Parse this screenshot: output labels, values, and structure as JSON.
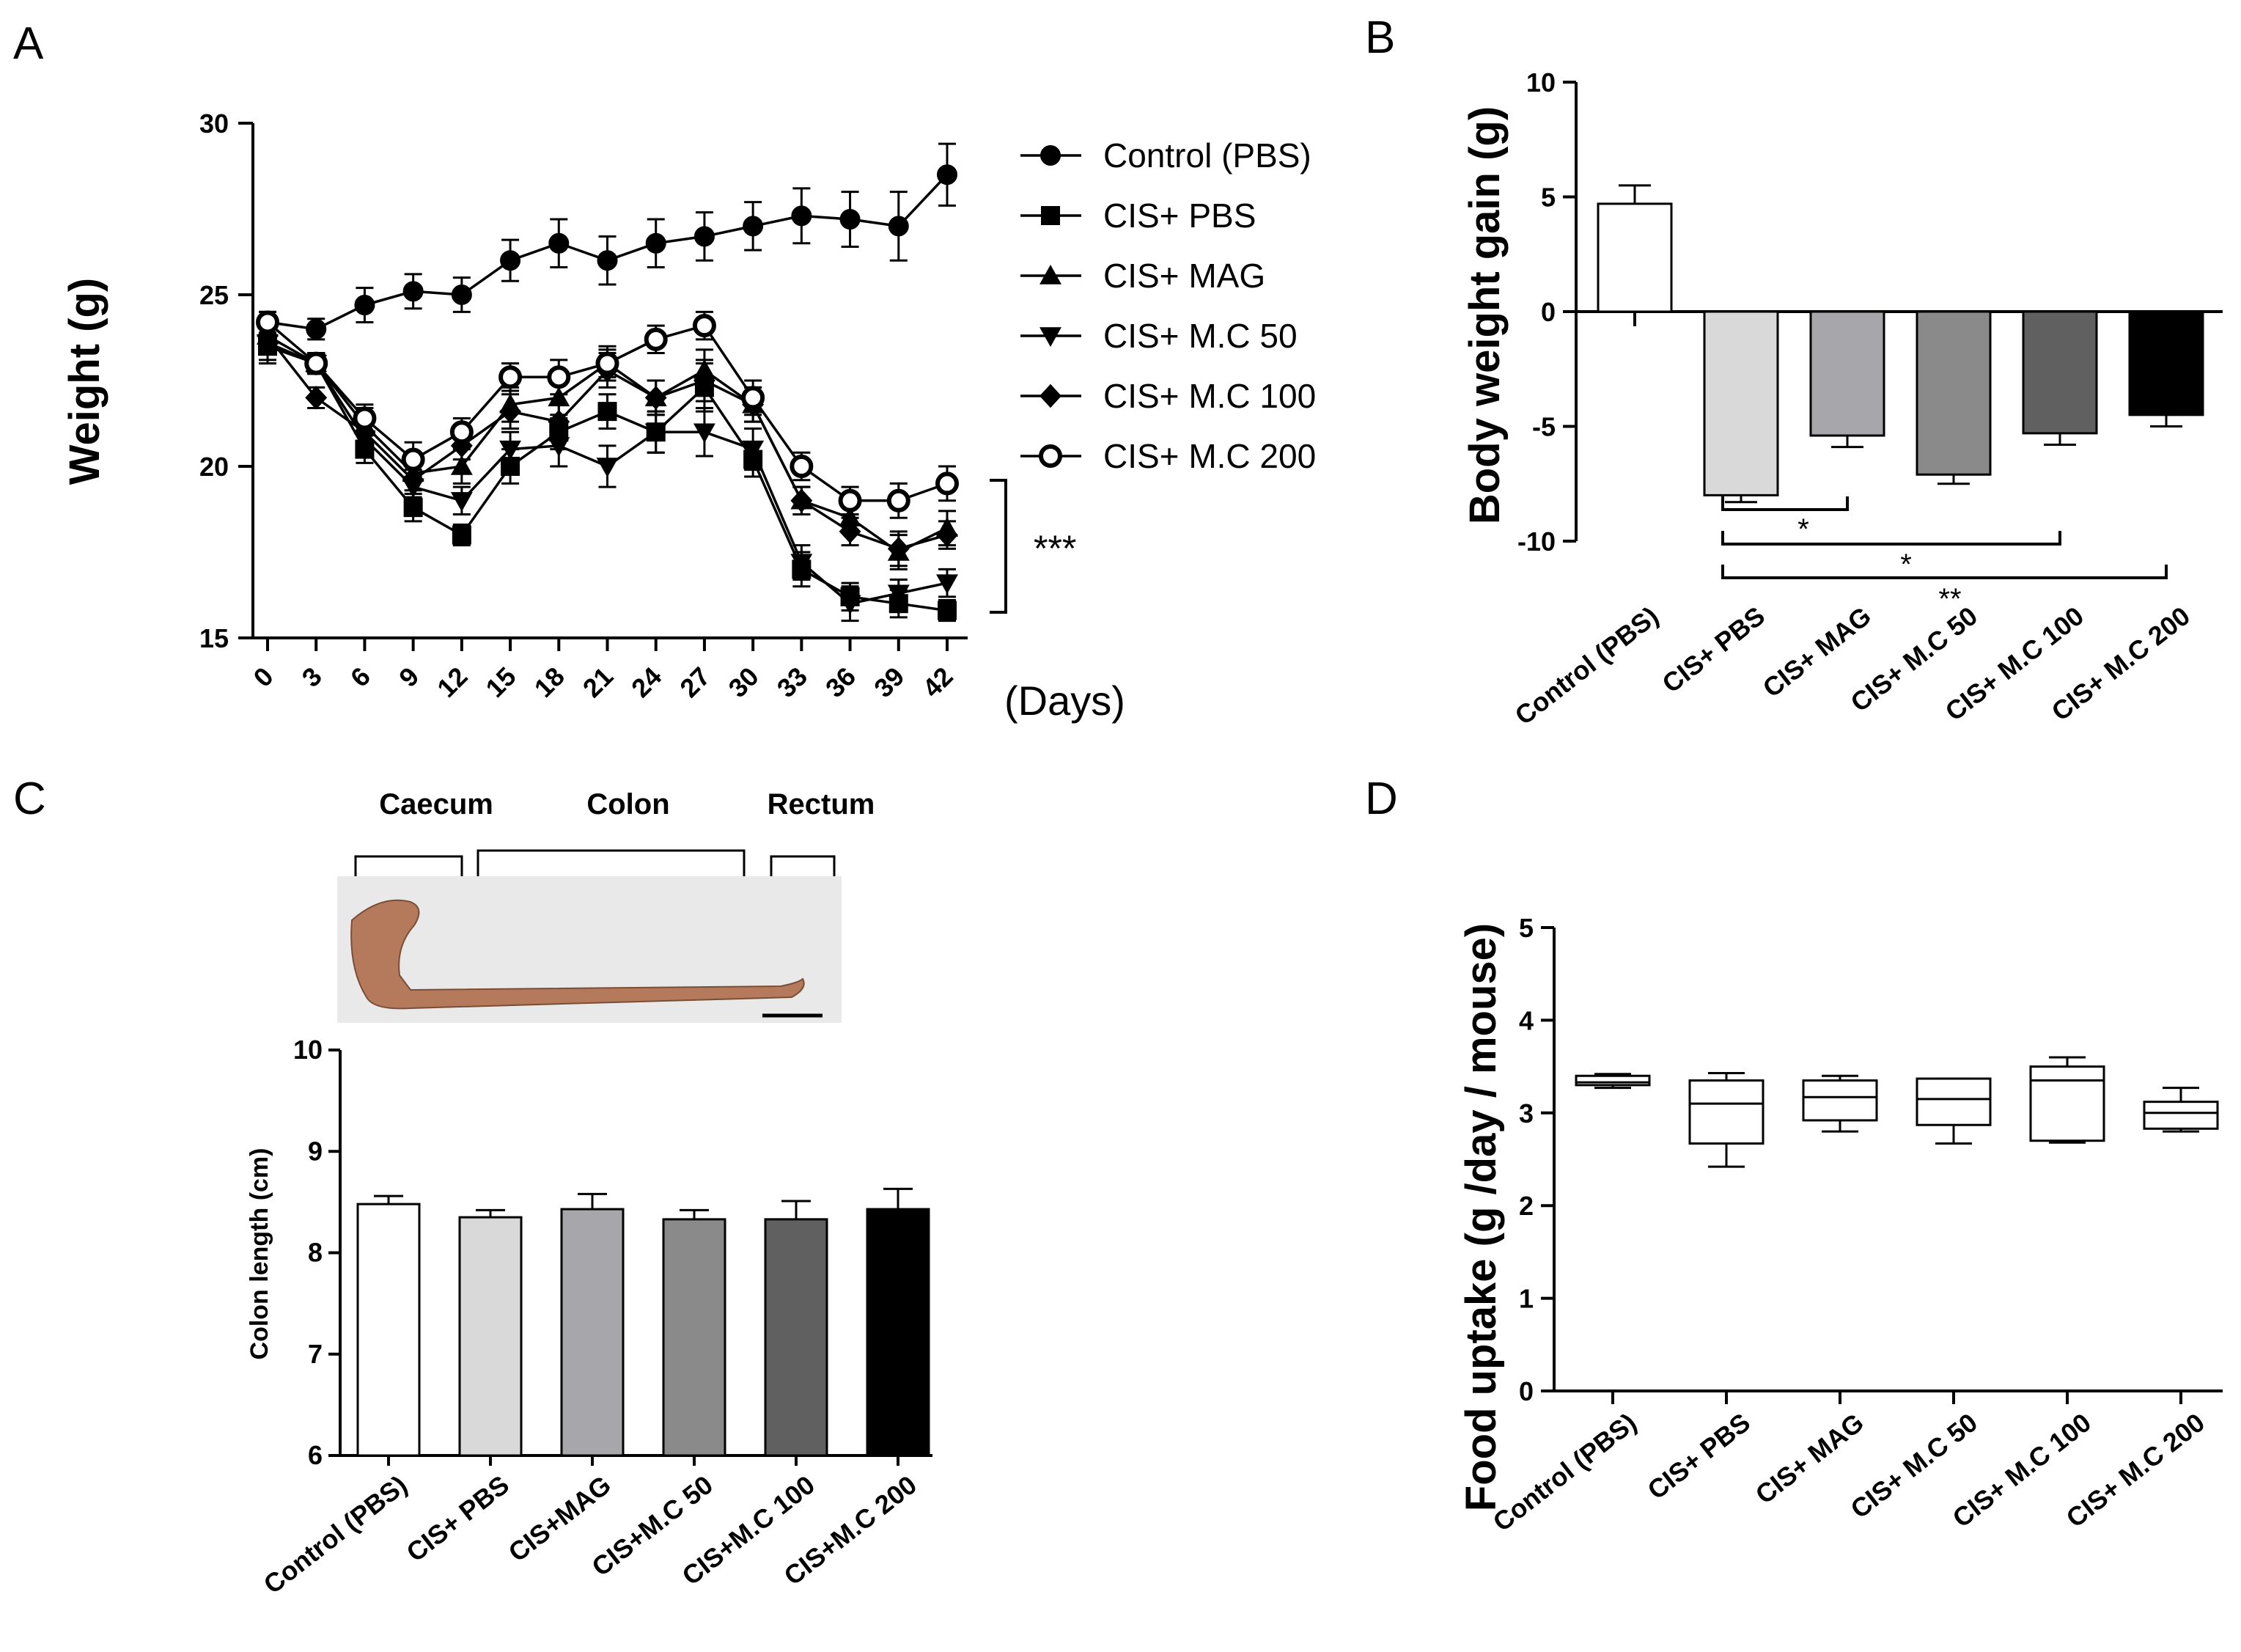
{
  "panels": {
    "A": "A",
    "B": "B",
    "C": "C",
    "D": "D"
  },
  "colors": {
    "control": "#ffffff",
    "pbs": "#d9d9d9",
    "mag": "#a6a6ab",
    "mc50": "#8a8a8a",
    "mc100": "#606060",
    "mc200": "#000000",
    "tissue": "#b57a5c",
    "photo_bg": "#e9e9ea"
  },
  "chart_data": [
    {
      "id": "A",
      "type": "line",
      "title": "",
      "xlabel": "(Days)",
      "ylabel": "Weight (g)",
      "ylim": [
        15,
        30
      ],
      "yticks": [
        "15",
        "20",
        "25",
        "30"
      ],
      "x": [
        0,
        3,
        6,
        9,
        12,
        15,
        18,
        21,
        24,
        27,
        30,
        33,
        36,
        39,
        42
      ],
      "xticklabels": [
        "0",
        "3",
        "6",
        "9",
        "12",
        "15",
        "18",
        "21",
        "24",
        "27",
        "30",
        "33",
        "36",
        "39",
        "42"
      ],
      "series": [
        {
          "name": "Control (PBS)",
          "marker": "circle",
          "values": [
            24.2,
            24.0,
            24.7,
            25.1,
            25.0,
            26.0,
            26.5,
            26.0,
            26.5,
            26.7,
            27.0,
            27.3,
            27.2,
            27.0,
            28.5
          ],
          "err": [
            0.3,
            0.3,
            0.5,
            0.5,
            0.5,
            0.6,
            0.7,
            0.7,
            0.7,
            0.7,
            0.7,
            0.8,
            0.8,
            1.0,
            0.9
          ]
        },
        {
          "name": "CIS+ PBS",
          "marker": "square",
          "values": [
            23.5,
            23.0,
            20.5,
            18.8,
            18.0,
            20.0,
            21.0,
            21.6,
            21.0,
            22.3,
            20.2,
            17.0,
            16.2,
            16.0,
            15.8
          ],
          "err": [
            0.5,
            0.3,
            0.4,
            0.4,
            0.3,
            0.5,
            0.5,
            0.5,
            0.6,
            0.7,
            0.5,
            0.5,
            0.4,
            0.4,
            0.3
          ]
        },
        {
          "name": "CIS+ MAG",
          "marker": "triangle-up",
          "values": [
            23.8,
            23.0,
            21.2,
            19.8,
            20.0,
            21.8,
            22.0,
            23.0,
            22.0,
            22.8,
            21.8,
            19.0,
            18.5,
            17.5,
            18.2
          ],
          "err": [
            0.5,
            0.3,
            0.5,
            0.5,
            0.5,
            0.5,
            0.6,
            0.5,
            0.5,
            0.6,
            0.5,
            0.4,
            0.4,
            0.5,
            0.5
          ]
        },
        {
          "name": "CIS+ M.C 50",
          "marker": "triangle-down",
          "values": [
            23.6,
            23.0,
            20.8,
            19.4,
            19.0,
            20.5,
            20.6,
            20.0,
            21.0,
            21.0,
            20.5,
            17.2,
            16.0,
            16.3,
            16.6
          ],
          "err": [
            0.5,
            0.3,
            0.5,
            0.5,
            0.4,
            0.5,
            0.6,
            0.6,
            0.6,
            0.7,
            0.6,
            0.5,
            0.5,
            0.4,
            0.4
          ]
        },
        {
          "name": "CIS+ M.C 100",
          "marker": "diamond",
          "values": [
            23.8,
            22.0,
            21.0,
            19.6,
            20.6,
            21.6,
            21.3,
            22.8,
            22.0,
            22.5,
            21.8,
            19.0,
            18.1,
            17.6,
            18.0
          ],
          "err": [
            0.4,
            0.3,
            0.5,
            0.5,
            0.4,
            0.5,
            0.5,
            0.5,
            0.5,
            0.6,
            0.5,
            0.4,
            0.4,
            0.5,
            0.4
          ]
        },
        {
          "name": "CIS+ M.C 200",
          "marker": "circle-open",
          "values": [
            24.2,
            23.0,
            21.4,
            20.2,
            21.0,
            22.6,
            22.6,
            23.0,
            23.7,
            24.1,
            22.0,
            20.0,
            19.0,
            19.0,
            19.5
          ],
          "err": [
            0.3,
            0.3,
            0.4,
            0.5,
            0.4,
            0.4,
            0.5,
            0.4,
            0.4,
            0.4,
            0.5,
            0.4,
            0.4,
            0.5,
            0.5
          ]
        }
      ],
      "annotation": "***"
    },
    {
      "id": "B",
      "type": "bar",
      "ylabel": "Body weight gain (g)",
      "ylim": [
        -10,
        10
      ],
      "yticks": [
        "-10",
        "-5",
        "0",
        "5",
        "10"
      ],
      "categories": [
        "Control (PBS)",
        "CIS+ PBS",
        "CIS+ MAG",
        "CIS+ M.C 50",
        "CIS+ M.C 100",
        "CIS+ M.C 200"
      ],
      "values": [
        4.7,
        -8.0,
        -5.4,
        -7.1,
        -5.3,
        -4.5
      ],
      "err": [
        0.8,
        0.3,
        0.5,
        0.4,
        0.5,
        0.5
      ],
      "brackets": [
        {
          "from": 1,
          "to": 2,
          "label": ""
        },
        {
          "from": 1,
          "to": 4,
          "label": "*"
        },
        {
          "from": 1,
          "to": 5,
          "label": "*"
        },
        {
          "from": 1,
          "to": 5,
          "label": "**"
        }
      ],
      "star_label_mag": "*"
    },
    {
      "id": "C",
      "type": "bar",
      "ylabel": "Colon length (cm)",
      "ylim": [
        6,
        10
      ],
      "yticks": [
        "6",
        "7",
        "8",
        "9",
        "10"
      ],
      "categories": [
        "Control (PBS)",
        "CIS+ PBS",
        "CIS+MAG",
        "CIS+M.C 50",
        "CIS+M.C 100",
        "CIS+M.C 200"
      ],
      "values": [
        8.48,
        8.35,
        8.43,
        8.33,
        8.33,
        8.43
      ],
      "err": [
        0.08,
        0.07,
        0.15,
        0.09,
        0.18,
        0.2
      ],
      "segments": [
        "Caecum",
        "Colon",
        "Rectum"
      ]
    },
    {
      "id": "D",
      "type": "box",
      "ylabel": "Food uptake (g /day / mouse)",
      "ylim": [
        0,
        5
      ],
      "yticks": [
        "0",
        "1",
        "2",
        "3",
        "4",
        "5"
      ],
      "categories": [
        "Control (PBS)",
        "CIS+ PBS",
        "CIS+ MAG",
        "CIS+ M.C 50",
        "CIS+ M.C 100",
        "CIS+ M.C 200"
      ],
      "boxes": [
        {
          "min": 3.27,
          "q1": 3.3,
          "median": 3.33,
          "q3": 3.4,
          "max": 3.42
        },
        {
          "min": 2.42,
          "q1": 2.67,
          "median": 3.1,
          "q3": 3.35,
          "max": 3.43
        },
        {
          "min": 2.8,
          "q1": 2.92,
          "median": 3.17,
          "q3": 3.35,
          "max": 3.4
        },
        {
          "min": 2.67,
          "q1": 2.87,
          "median": 3.15,
          "q3": 3.37,
          "max": 3.37
        },
        {
          "min": 2.68,
          "q1": 2.7,
          "median": 3.35,
          "q3": 3.5,
          "max": 3.6
        },
        {
          "min": 2.8,
          "q1": 2.83,
          "median": 3.0,
          "q3": 3.12,
          "max": 3.27
        }
      ]
    }
  ]
}
